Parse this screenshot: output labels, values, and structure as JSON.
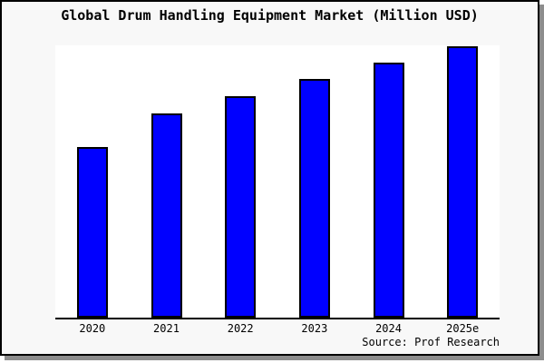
{
  "figure": {
    "background": "#f8f8f8",
    "plot_background": "#ffffff",
    "border_color": "#000000",
    "shadow_color": "#8d8d8d"
  },
  "source": "Source: Prof Research",
  "chart_data": {
    "type": "bar",
    "title": "Global Drum Handling Equipment Market (Million USD)",
    "categories": [
      "2020",
      "2021",
      "2022",
      "2023",
      "2024",
      "2025e"
    ],
    "values": [
      62.7,
      75.1,
      81.4,
      87.6,
      93.6,
      99.7
    ],
    "value_scale": "relative percent of plot height; no y-axis tick labels shown in figure",
    "xlabel": "",
    "ylabel": "",
    "ylim": [
      0,
      100
    ],
    "grid": false,
    "legend": false,
    "bar_color": "#0000ff",
    "bar_border_color": "#000000",
    "axis_line": "bottom-only"
  }
}
